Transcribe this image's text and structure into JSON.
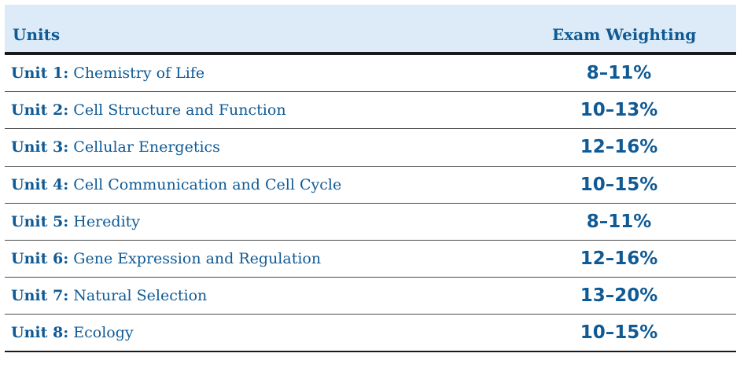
{
  "table": {
    "headers": {
      "units": "Units",
      "weighting": "Exam Weighting"
    },
    "rows": [
      {
        "unit": "Unit 1:",
        "title": "Chemistry of Life",
        "weighting": "8–11%"
      },
      {
        "unit": "Unit 2:",
        "title": "Cell Structure and Function",
        "weighting": "10–13%"
      },
      {
        "unit": "Unit 3:",
        "title": "Cellular Energetics",
        "weighting": "12–16%"
      },
      {
        "unit": "Unit 4:",
        "title": "Cell Communication and Cell Cycle",
        "weighting": "10–15%"
      },
      {
        "unit": "Unit 5:",
        "title": "Heredity",
        "weighting": "8–11%"
      },
      {
        "unit": "Unit 6:",
        "title": "Gene Expression and Regulation",
        "weighting": "12–16%"
      },
      {
        "unit": "Unit 7:",
        "title": "Natural Selection",
        "weighting": "13–20%"
      },
      {
        "unit": "Unit 8:",
        "title": "Ecology",
        "weighting": "10–15%"
      }
    ]
  },
  "colors": {
    "text": "#0f5a95",
    "header_bg": "#dcebf7",
    "rule": "#1a1a1a"
  }
}
